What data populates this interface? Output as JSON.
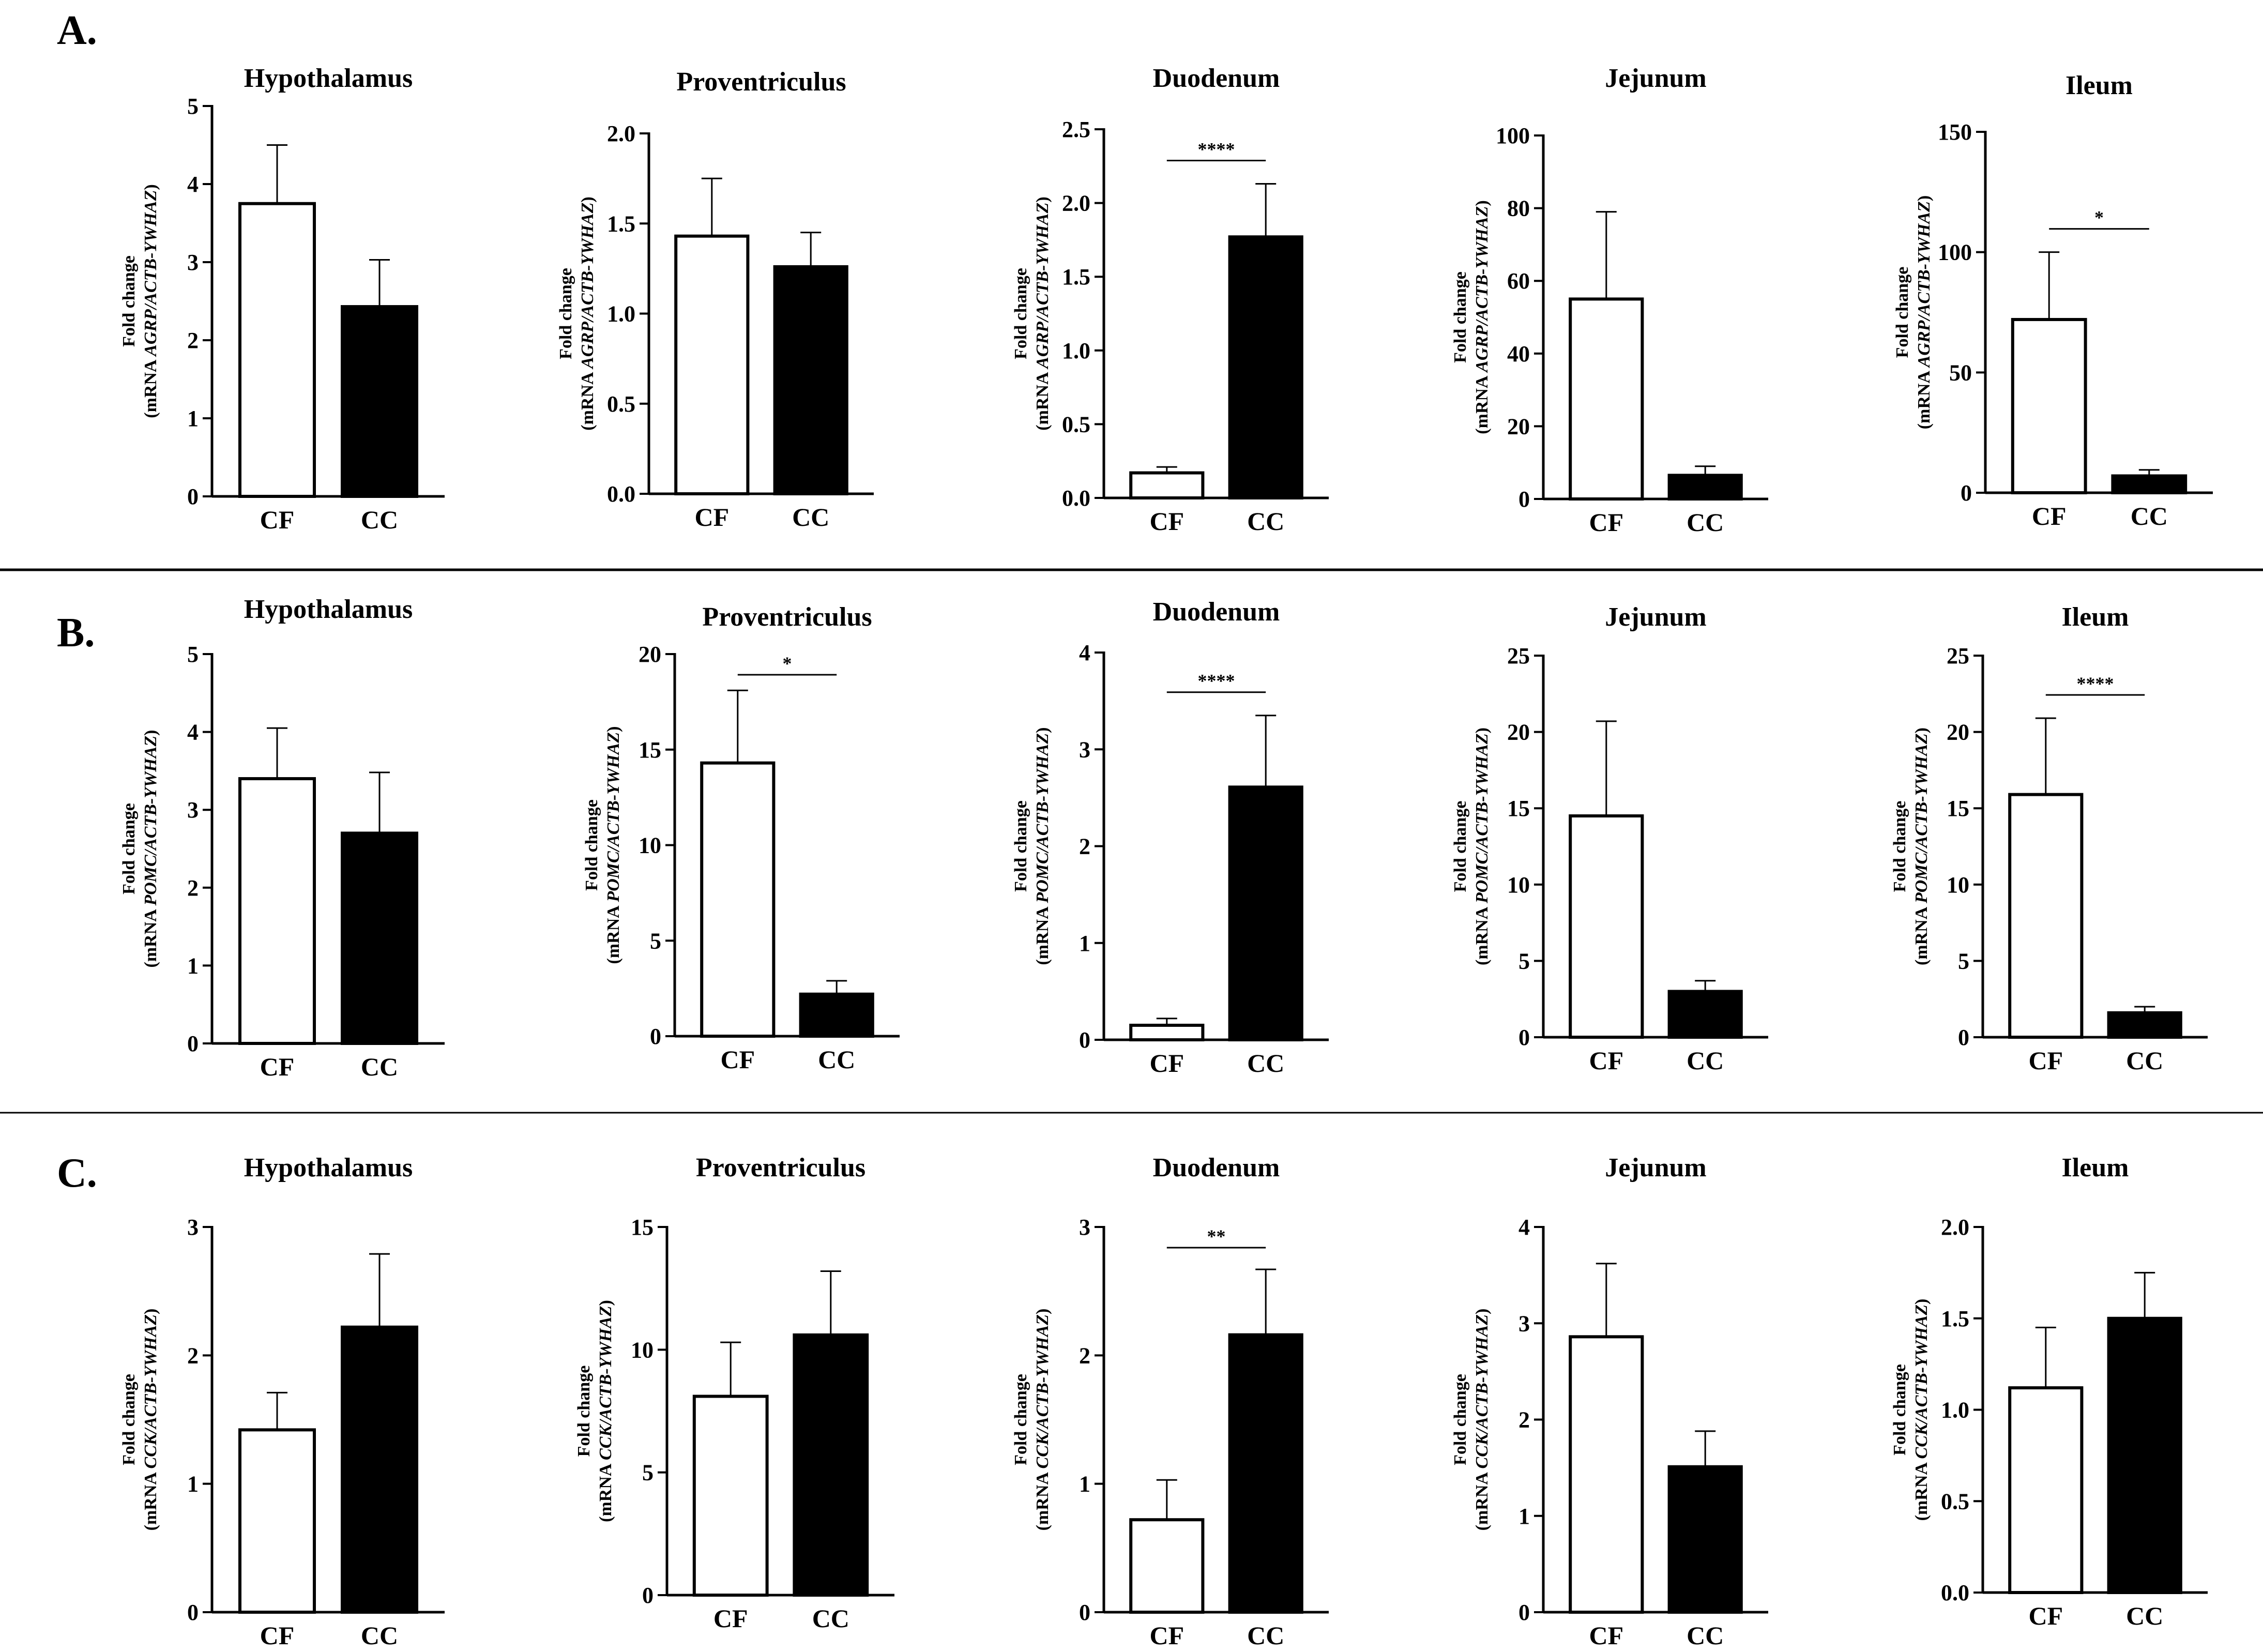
{
  "figure": {
    "sections": [
      {
        "label": "A.",
        "gene": "AGRP",
        "ylabel_line1": "Fold change",
        "ylabel_line2_prefix": "(mRNA ",
        "ylabel_line2_gene": "AGRP/ACTB-YWHAZ",
        "ylabel_line2_suffix": ")"
      },
      {
        "label": "B.",
        "gene": "POMC",
        "ylabel_line1": "Fold change",
        "ylabel_line2_prefix": "(mRNA ",
        "ylabel_line2_gene": "POMC/ACTB-YWHAZ",
        "ylabel_line2_suffix": ")"
      },
      {
        "label": "C.",
        "gene": "CCK",
        "ylabel_line1": "Fold change",
        "ylabel_line2_prefix": "(mRNA ",
        "ylabel_line2_gene": "CCK/ACTB-YWHAZ",
        "ylabel_line2_suffix": ")"
      }
    ],
    "colors": {
      "CF": "#ffffff",
      "CC": "#000000",
      "stroke": "#000000"
    }
  },
  "chart_data": [
    {
      "type": "bar",
      "section": "A.",
      "title": "Hypothalamus",
      "categories": [
        "CF",
        "CC"
      ],
      "values": [
        3.75,
        2.43
      ],
      "errors": [
        0.75,
        0.6
      ],
      "ylim": [
        0,
        5
      ],
      "yticks": [
        "0",
        "1",
        "2",
        "3",
        "4",
        "5"
      ],
      "ytick_values": [
        0,
        1,
        2,
        3,
        4,
        5
      ],
      "significance": ""
    },
    {
      "type": "bar",
      "section": "A.",
      "title": "Proventriculus",
      "categories": [
        "CF",
        "CC"
      ],
      "values": [
        1.43,
        1.26
      ],
      "errors": [
        0.32,
        0.19
      ],
      "ylim": [
        0,
        2.0
      ],
      "yticks": [
        "0.0",
        "0.5",
        "1.0",
        "1.5",
        "2.0"
      ],
      "ytick_values": [
        0,
        0.5,
        1.0,
        1.5,
        2.0
      ],
      "significance": ""
    },
    {
      "type": "bar",
      "section": "A.",
      "title": "Duodenum",
      "categories": [
        "CF",
        "CC"
      ],
      "values": [
        0.17,
        1.77
      ],
      "errors": [
        0.04,
        0.36
      ],
      "ylim": [
        0,
        2.5
      ],
      "yticks": [
        "0.0",
        "0.5",
        "1.0",
        "1.5",
        "2.0",
        "2.5"
      ],
      "ytick_values": [
        0,
        0.5,
        1.0,
        1.5,
        2.0,
        2.5
      ],
      "significance": "****"
    },
    {
      "type": "bar",
      "section": "A.",
      "title": "Jejunum",
      "categories": [
        "CF",
        "CC"
      ],
      "values": [
        55,
        6.5
      ],
      "errors": [
        24,
        2.5
      ],
      "ylim": [
        0,
        100
      ],
      "yticks": [
        "0",
        "20",
        "40",
        "60",
        "80",
        "100"
      ],
      "ytick_values": [
        0,
        20,
        40,
        60,
        80,
        100
      ],
      "significance": ""
    },
    {
      "type": "bar",
      "section": "A.",
      "title": "Ileum",
      "categories": [
        "CF",
        "CC"
      ],
      "values": [
        72,
        7
      ],
      "errors": [
        28,
        2.5
      ],
      "ylim": [
        0,
        150
      ],
      "yticks": [
        "0",
        "50",
        "100",
        "150"
      ],
      "ytick_values": [
        0,
        50,
        100,
        150
      ],
      "significance": "*"
    },
    {
      "type": "bar",
      "section": "B.",
      "title": "Hypothalamus",
      "categories": [
        "CF",
        "CC"
      ],
      "values": [
        3.4,
        2.7
      ],
      "errors": [
        0.65,
        0.78
      ],
      "ylim": [
        0,
        5
      ],
      "yticks": [
        "0",
        "1",
        "2",
        "3",
        "4",
        "5"
      ],
      "ytick_values": [
        0,
        1,
        2,
        3,
        4,
        5
      ],
      "significance": ""
    },
    {
      "type": "bar",
      "section": "B.",
      "title": "Proventriculus",
      "categories": [
        "CF",
        "CC"
      ],
      "values": [
        14.3,
        2.2
      ],
      "errors": [
        3.8,
        0.7
      ],
      "ylim": [
        0,
        20
      ],
      "yticks": [
        "0",
        "5",
        "10",
        "15",
        "20"
      ],
      "ytick_values": [
        0,
        5,
        10,
        15,
        20
      ],
      "significance": "*"
    },
    {
      "type": "bar",
      "section": "B.",
      "title": "Duodenum",
      "categories": [
        "CF",
        "CC"
      ],
      "values": [
        0.15,
        2.61
      ],
      "errors": [
        0.07,
        0.74
      ],
      "ylim": [
        0,
        4
      ],
      "yticks": [
        "0",
        "1",
        "2",
        "3",
        "4"
      ],
      "ytick_values": [
        0,
        1,
        2,
        3,
        4
      ],
      "significance": "****"
    },
    {
      "type": "bar",
      "section": "B.",
      "title": "Jejunum",
      "categories": [
        "CF",
        "CC"
      ],
      "values": [
        14.5,
        3.0
      ],
      "errors": [
        6.2,
        0.7
      ],
      "ylim": [
        0,
        25
      ],
      "yticks": [
        "0",
        "5",
        "10",
        "15",
        "20",
        "25"
      ],
      "ytick_values": [
        0,
        5,
        10,
        15,
        20,
        25
      ],
      "significance": ""
    },
    {
      "type": "bar",
      "section": "B.",
      "title": "Ileum",
      "categories": [
        "CF",
        "CC"
      ],
      "values": [
        15.9,
        1.6
      ],
      "errors": [
        5.0,
        0.4
      ],
      "ylim": [
        0,
        25
      ],
      "yticks": [
        "0",
        "5",
        "10",
        "15",
        "20",
        "25"
      ],
      "ytick_values": [
        0,
        5,
        10,
        15,
        20,
        25
      ],
      "significance": "****"
    },
    {
      "type": "bar",
      "section": "C.",
      "title": "Hypothalamus",
      "categories": [
        "CF",
        "CC"
      ],
      "values": [
        1.42,
        2.22
      ],
      "errors": [
        0.29,
        0.57
      ],
      "ylim": [
        0,
        3
      ],
      "yticks": [
        "0",
        "1",
        "2",
        "3"
      ],
      "ytick_values": [
        0,
        1,
        2,
        3
      ],
      "significance": ""
    },
    {
      "type": "bar",
      "section": "C.",
      "title": "Proventriculus",
      "categories": [
        "CF",
        "CC"
      ],
      "values": [
        8.1,
        10.6
      ],
      "errors": [
        2.2,
        2.6
      ],
      "ylim": [
        0,
        15
      ],
      "yticks": [
        "0",
        "5",
        "10",
        "15"
      ],
      "ytick_values": [
        0,
        5,
        10,
        15
      ],
      "significance": ""
    },
    {
      "type": "bar",
      "section": "C.",
      "title": "Duodenum",
      "categories": [
        "CF",
        "CC"
      ],
      "values": [
        0.72,
        2.16
      ],
      "errors": [
        0.31,
        0.51
      ],
      "ylim": [
        0,
        3
      ],
      "yticks": [
        "0",
        "1",
        "2",
        "3"
      ],
      "ytick_values": [
        0,
        1,
        2,
        3
      ],
      "significance": "**"
    },
    {
      "type": "bar",
      "section": "C.",
      "title": "Jejunum",
      "categories": [
        "CF",
        "CC"
      ],
      "values": [
        2.86,
        1.51
      ],
      "errors": [
        0.76,
        0.37
      ],
      "ylim": [
        0,
        4
      ],
      "yticks": [
        "0",
        "1",
        "2",
        "3",
        "4"
      ],
      "ytick_values": [
        0,
        1,
        2,
        3,
        4
      ],
      "significance": ""
    },
    {
      "type": "bar",
      "section": "C.",
      "title": "Ileum",
      "categories": [
        "CF",
        "CC"
      ],
      "values": [
        1.12,
        1.5
      ],
      "errors": [
        0.33,
        0.25
      ],
      "ylim": [
        0,
        2.0
      ],
      "yticks": [
        "0.0",
        "0.5",
        "1.0",
        "1.5",
        "2.0"
      ],
      "ytick_values": [
        0,
        0.5,
        1.0,
        1.5,
        2.0
      ],
      "significance": ""
    }
  ]
}
